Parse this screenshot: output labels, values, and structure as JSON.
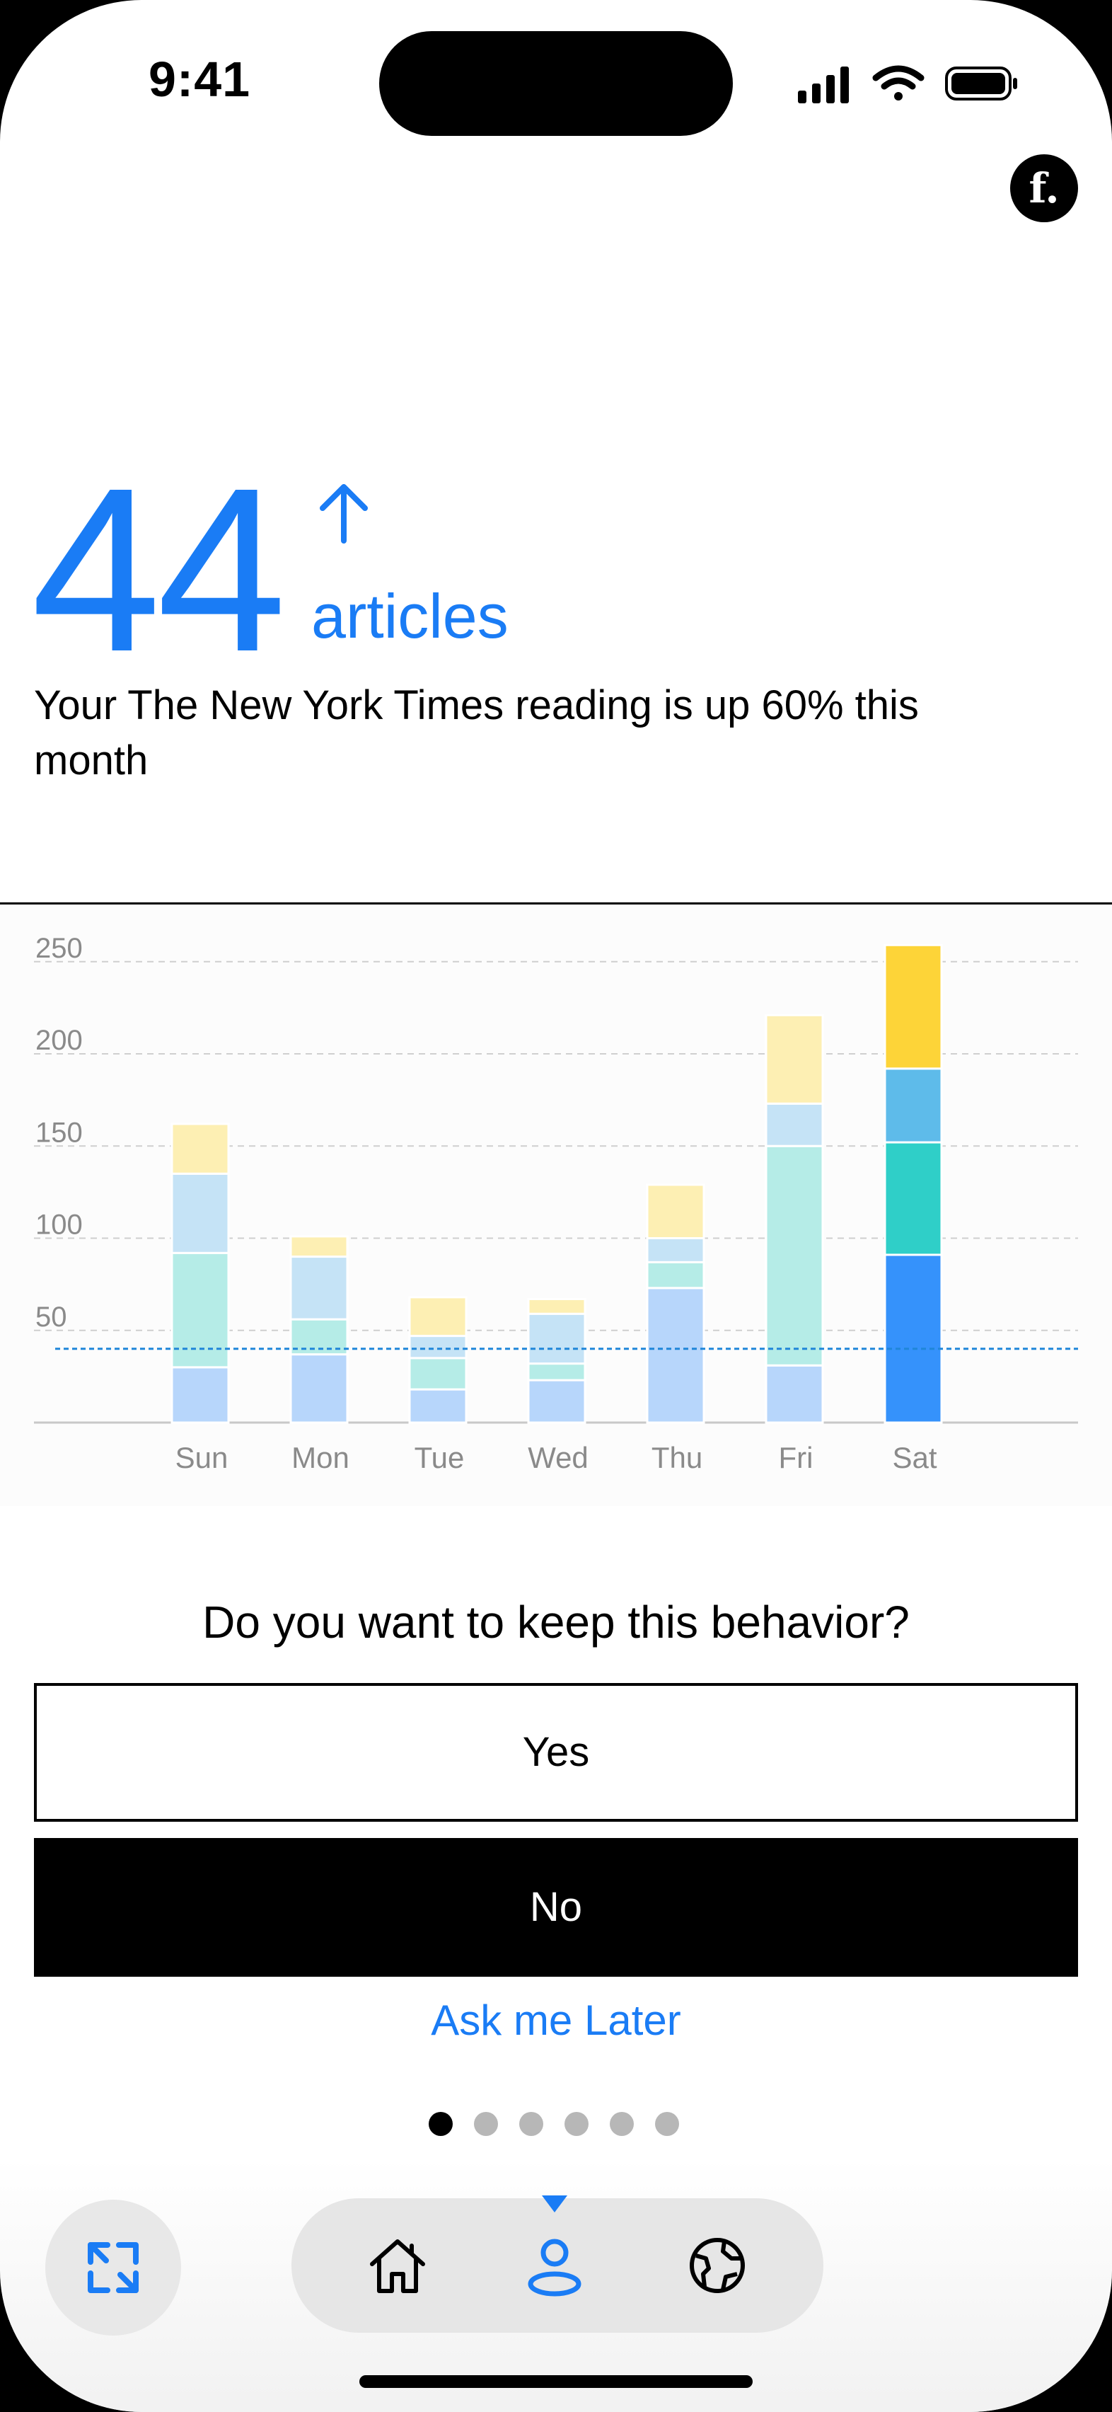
{
  "status": {
    "time": "9:41"
  },
  "brand": {
    "logo_letter": "f."
  },
  "hero": {
    "count": "44",
    "unit": "articles",
    "trend": "up",
    "subtitle": "Your The New York Times reading is up 60% this month"
  },
  "chart_data": {
    "type": "bar",
    "stacked": true,
    "categories": [
      "Sun",
      "Mon",
      "Tue",
      "Wed",
      "Thu",
      "Fri",
      "Sat"
    ],
    "series": [
      {
        "values": [
          30,
          37,
          18,
          23,
          73,
          31,
          91
        ],
        "color": "#b7d6fb",
        "highlight": "#3592fb"
      },
      {
        "values": [
          62,
          19,
          17,
          9,
          14,
          119,
          61
        ],
        "color": "#b5ece7",
        "highlight": "#2fcfc8"
      },
      {
        "values": [
          43,
          34,
          12,
          27,
          13,
          23,
          40
        ],
        "color": "#c5e3f6",
        "highlight": "#5ebbea"
      },
      {
        "values": [
          27,
          11,
          21,
          8,
          29,
          48,
          67
        ],
        "color": "#fdefb3",
        "highlight": "#fdd438"
      }
    ],
    "highlight_category": "Sat",
    "yticks": [
      50,
      100,
      150,
      200,
      250
    ],
    "ylim": [
      0,
      265
    ],
    "reference_line": 40,
    "reference_color": "#1f86d9",
    "grid": true,
    "title": "",
    "xlabel": "",
    "ylabel": ""
  },
  "prompt": {
    "question": "Do you want to keep this behavior?",
    "yes_label": "Yes",
    "no_label": "No",
    "later_label": "Ask me Later"
  },
  "pagination": {
    "count": 6,
    "active": 0
  },
  "tabbar": {
    "items": [
      {
        "name": "home",
        "icon": "house-icon",
        "active": false
      },
      {
        "name": "profile",
        "icon": "person-icon",
        "active": true
      },
      {
        "name": "explore",
        "icon": "globe-icon",
        "active": false
      }
    ],
    "sync_icon": "sync-arrows-icon",
    "accent": "#1a7cf5"
  }
}
